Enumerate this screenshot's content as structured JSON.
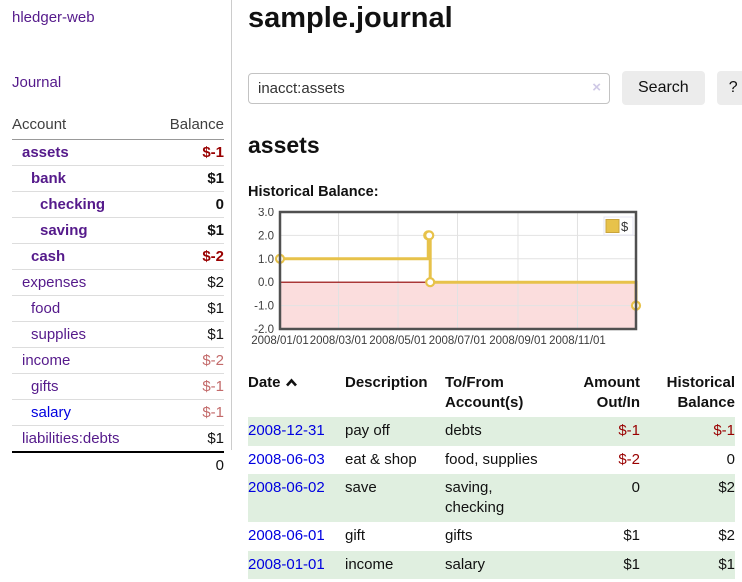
{
  "app": {
    "brand": "hledger-web"
  },
  "sidebar": {
    "nav_journal": "Journal",
    "accounts": {
      "header": {
        "account": "Account",
        "balance": "Balance"
      },
      "rows": [
        {
          "account": "assets",
          "indent": 0,
          "bold": true,
          "balance": "$-1",
          "balance_class": "neg"
        },
        {
          "account": "bank",
          "indent": 1,
          "bold": true,
          "balance": "$1",
          "balance_class": ""
        },
        {
          "account": "checking",
          "indent": 2,
          "bold": true,
          "balance": "0",
          "balance_class": ""
        },
        {
          "account": "saving",
          "indent": 2,
          "bold": true,
          "balance": "$1",
          "balance_class": ""
        },
        {
          "account": "cash",
          "indent": 1,
          "bold": true,
          "balance": "$-2",
          "balance_class": "neg"
        },
        {
          "account": "expenses",
          "indent": 0,
          "bold": false,
          "balance": "$2",
          "balance_class": ""
        },
        {
          "account": "food",
          "indent": 1,
          "bold": false,
          "balance": "$1",
          "balance_class": ""
        },
        {
          "account": "supplies",
          "indent": 1,
          "bold": false,
          "balance": "$1",
          "balance_class": ""
        },
        {
          "account": "income",
          "indent": 0,
          "bold": false,
          "balance": "$-2",
          "balance_class": "negdim"
        },
        {
          "account": "gifts",
          "indent": 1,
          "bold": false,
          "balance": "$-1",
          "balance_class": "negdim"
        },
        {
          "account": "salary",
          "indent": 1,
          "bold": false,
          "balance": "$-1",
          "balance_class": "negdim",
          "link": "blue"
        },
        {
          "account": "liabilities:debts",
          "indent": 0,
          "bold": false,
          "balance": "$1",
          "balance_class": ""
        }
      ],
      "total": "0"
    }
  },
  "header": {
    "title": "sample.journal",
    "search": {
      "value": "inacct:assets",
      "clear_icon": "×",
      "search_button": "Search",
      "help_button": "?"
    }
  },
  "main": {
    "account_title": "assets",
    "chart_label": "Historical Balance:"
  },
  "chart_data": {
    "type": "line",
    "step": true,
    "title": "Historical Balance:",
    "series": [
      {
        "name": "$",
        "color": "#e7c24a",
        "points": [
          [
            "2008-01-01",
            1
          ],
          [
            "2008-06-01",
            2
          ],
          [
            "2008-06-02",
            2
          ],
          [
            "2008-06-03",
            0
          ],
          [
            "2008-12-31",
            -1
          ]
        ]
      }
    ],
    "x_range": [
      "2008-01-01",
      "2008-12-31"
    ],
    "x_ticks": [
      {
        "date": "2008-01-01",
        "label": "2008/01/01"
      },
      {
        "date": "2008-03-01",
        "label": "2008/03/01"
      },
      {
        "date": "2008-05-01",
        "label": "2008/05/01"
      },
      {
        "date": "2008-07-01",
        "label": "2008/07/01"
      },
      {
        "date": "2008-09-01",
        "label": "2008/09/01"
      },
      {
        "date": "2008-11-01",
        "label": "2008/11/01"
      }
    ],
    "ylim": [
      -2,
      3
    ],
    "y_ticks": [
      {
        "v": 3,
        "label": "3.0"
      },
      {
        "v": 2,
        "label": "2.0"
      },
      {
        "v": 1,
        "label": "1.0"
      },
      {
        "v": 0,
        "label": "0.0"
      },
      {
        "v": -1,
        "label": "-1.0"
      },
      {
        "v": -2,
        "label": "-2.0"
      }
    ],
    "grid": true,
    "grid_color": "#e2e2e2",
    "negative_region_color": "#fbdddd",
    "zero_line_color": "#8f0000",
    "legend_position": "top-right"
  },
  "register": {
    "headers": {
      "date": "Date",
      "description": "Description",
      "accounts": "To/From Account(s)",
      "amount": "Amount Out/In",
      "balance": "Historical Balance"
    },
    "rows": [
      {
        "date": "2008-12-31",
        "description": "pay off",
        "accounts": "debts",
        "amount": "$-1",
        "amount_class": "neg",
        "balance": "$-1",
        "balance_class": "neg",
        "shaded": true
      },
      {
        "date": "2008-06-03",
        "description": "eat & shop",
        "accounts": "food, supplies",
        "amount": "$-2",
        "amount_class": "neg",
        "balance": "0",
        "balance_class": "",
        "shaded": false
      },
      {
        "date": "2008-06-02",
        "description": "save",
        "accounts": "saving,\nchecking",
        "amount": "0",
        "amount_class": "",
        "balance": "$2",
        "balance_class": "",
        "shaded": true
      },
      {
        "date": "2008-06-01",
        "description": "gift",
        "accounts": "gifts",
        "amount": "$1",
        "amount_class": "",
        "balance": "$2",
        "balance_class": "",
        "shaded": false
      },
      {
        "date": "2008-01-01",
        "description": "income",
        "accounts": "salary",
        "amount": "$1",
        "amount_class": "",
        "balance": "$1",
        "balance_class": "",
        "shaded": true
      }
    ]
  },
  "colors": {
    "accent_purple": "#551a8b",
    "link_blue": "#0000e0",
    "negative_red": "#990000",
    "negative_dim_red": "#c36a6a",
    "row_shade_green": "#e0efe0",
    "series_gold": "#e7c24a",
    "negative_area_pink": "#fbdddd",
    "chart_border": "#505050"
  }
}
